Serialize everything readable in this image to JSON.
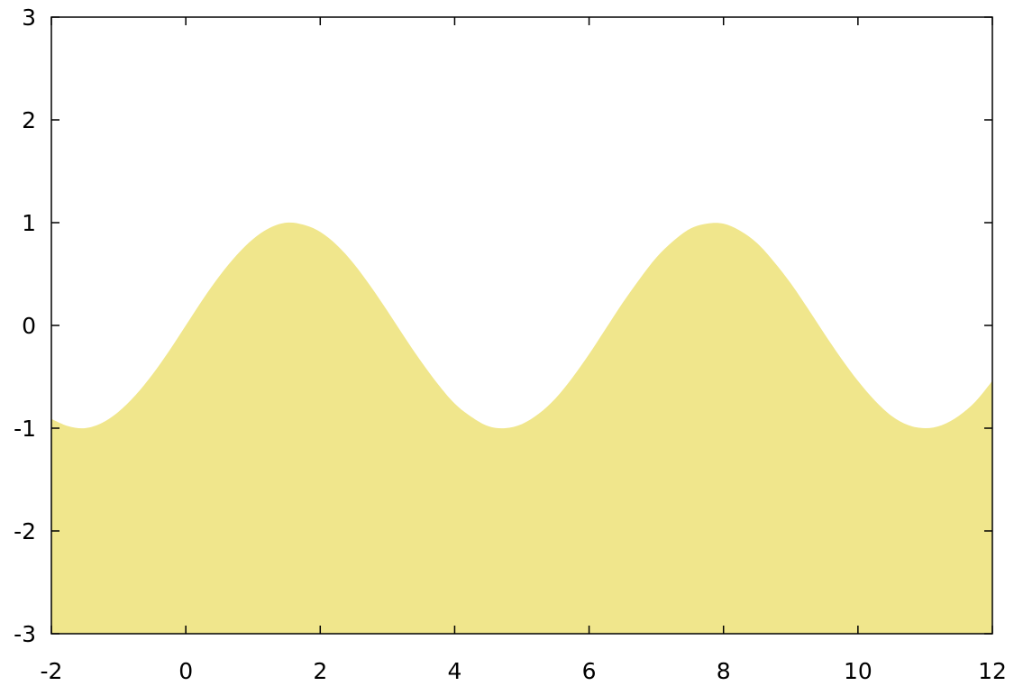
{
  "chart_data": {
    "type": "area",
    "title": "",
    "xlabel": "",
    "ylabel": "",
    "xlim": [
      -2,
      12
    ],
    "ylim": [
      -3,
      3
    ],
    "x_ticks": [
      "-2",
      "0",
      "2",
      "4",
      "6",
      "8",
      "10",
      "12"
    ],
    "y_ticks": [
      "-3",
      "-2",
      "-1",
      "0",
      "1",
      "2",
      "3"
    ],
    "grid": false,
    "legend": "none",
    "fill_baseline": -3,
    "fill_color": "#f0e68c",
    "axis_color": "#000000",
    "series": [
      {
        "x": [
          -2.0,
          -1.75,
          -1.5,
          -1.25,
          -1.0,
          -0.75,
          -0.5,
          -0.25,
          0.0,
          0.25,
          0.5,
          0.75,
          1.0,
          1.25,
          1.5,
          1.75,
          2.0,
          2.25,
          2.5,
          2.75,
          3.0,
          3.25,
          3.5,
          3.75,
          4.0,
          4.25,
          4.5,
          4.75,
          5.0,
          5.25,
          5.5,
          5.75,
          6.0,
          6.25,
          6.5,
          6.75,
          7.0,
          7.25,
          7.5,
          7.75,
          8.0,
          8.25,
          8.5,
          8.75,
          9.0,
          9.25,
          9.5,
          9.75,
          10.0,
          10.25,
          10.5,
          10.75,
          11.0,
          11.25,
          11.5,
          11.75,
          12.0
        ],
        "values": [
          -0.91,
          -0.98,
          -1.0,
          -0.95,
          -0.84,
          -0.68,
          -0.48,
          -0.25,
          0.0,
          0.25,
          0.48,
          0.68,
          0.84,
          0.95,
          1.0,
          0.98,
          0.91,
          0.78,
          0.6,
          0.38,
          0.14,
          -0.11,
          -0.35,
          -0.57,
          -0.76,
          -0.89,
          -0.98,
          -1.0,
          -0.96,
          -0.86,
          -0.71,
          -0.51,
          -0.28,
          -0.03,
          0.22,
          0.45,
          0.66,
          0.82,
          0.94,
          0.99,
          0.99,
          0.92,
          0.8,
          0.62,
          0.41,
          0.17,
          -0.08,
          -0.32,
          -0.54,
          -0.73,
          -0.88,
          -0.97,
          -1.0,
          -0.97,
          -0.88,
          -0.74,
          -0.54
        ]
      }
    ]
  }
}
